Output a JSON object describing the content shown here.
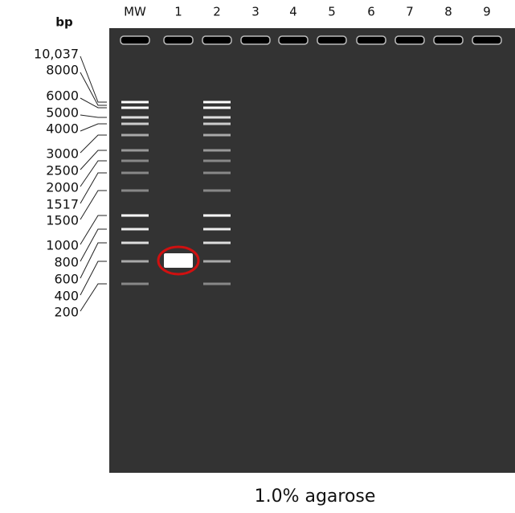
{
  "units": "bp",
  "lanes": [
    "MW",
    "1",
    "2",
    "3",
    "4",
    "5",
    "6",
    "7",
    "8",
    "9"
  ],
  "sizes": [
    "10,037",
    "8000",
    "6000",
    "5000",
    "4000",
    "3000",
    "2500",
    "2000",
    "1517",
    "1500",
    "1000",
    "800",
    "600",
    "400",
    "200"
  ],
  "caption": "1.0% agarose"
}
